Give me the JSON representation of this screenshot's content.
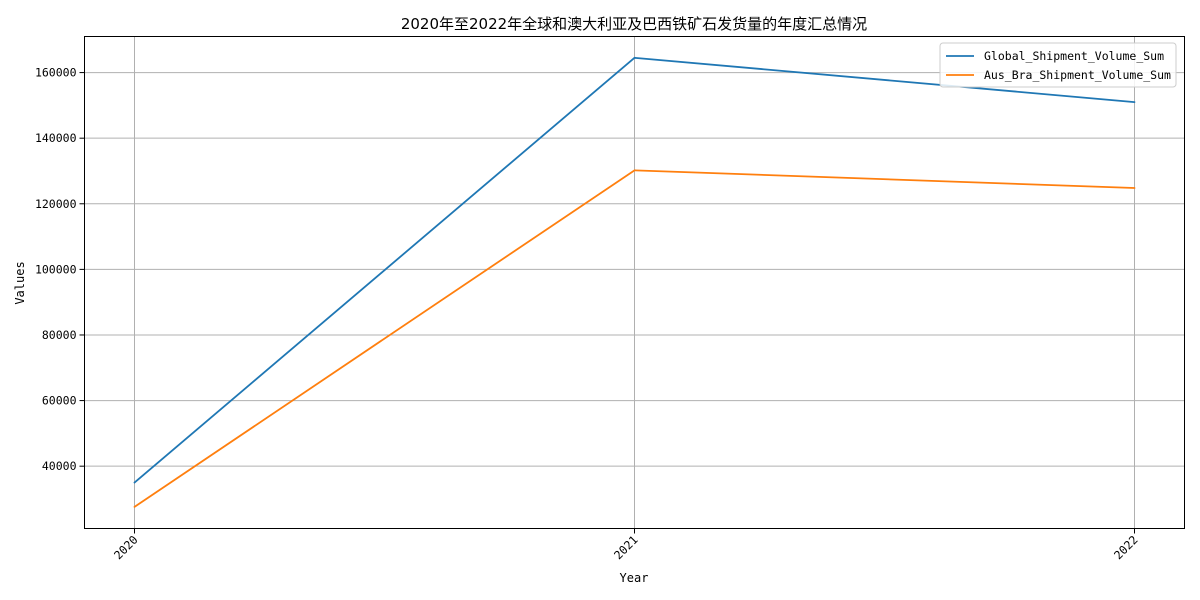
{
  "chart_data": {
    "type": "line",
    "title": "2020年至2022年全球和澳大利亚及巴西铁矿石发货量的年度汇总情况",
    "xlabel": "Year",
    "ylabel": "Values",
    "categories": [
      "2020",
      "2021",
      "2022"
    ],
    "yticks": [
      40000,
      60000,
      80000,
      100000,
      120000,
      140000,
      160000
    ],
    "ylim": [
      21000,
      171000
    ],
    "grid": true,
    "legend_position": "top-right",
    "series": [
      {
        "name": "Global_Shipment_Volume_Sum",
        "color": "#1f77b4",
        "values": [
          35000,
          164500,
          151000
        ]
      },
      {
        "name": "Aus_Bra_Shipment_Volume_Sum",
        "color": "#ff7f0e",
        "values": [
          27600,
          130200,
          124800
        ]
      }
    ]
  }
}
